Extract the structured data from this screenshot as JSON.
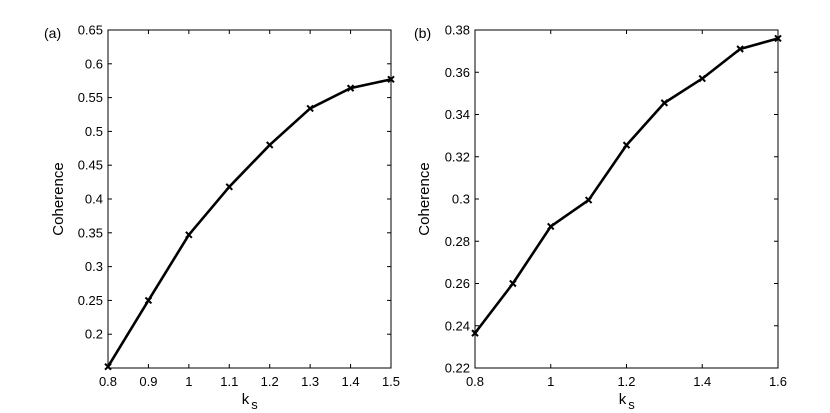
{
  "chart_data": [
    {
      "type": "line",
      "panel_label": "(a)",
      "xlabel": "k",
      "xlabel_sub": "s",
      "ylabel": "Coherence",
      "xlim": [
        0.8,
        1.5
      ],
      "ylim": [
        0.15,
        0.65
      ],
      "xticks": [
        "0.8",
        "0.9",
        "1",
        "1.1",
        "1.2",
        "1.3",
        "1.4",
        "1.5"
      ],
      "yticks": [
        "0.2",
        "0.25",
        "0.3",
        "0.35",
        "0.4",
        "0.45",
        "0.5",
        "0.55",
        "0.6",
        "0.65"
      ],
      "grid": false,
      "marker": "x",
      "color": "#000000",
      "x": [
        0.8,
        0.9,
        1.0,
        1.1,
        1.2,
        1.3,
        1.4,
        1.5
      ],
      "y": [
        0.152,
        0.25,
        0.347,
        0.418,
        0.48,
        0.534,
        0.564,
        0.577
      ]
    },
    {
      "type": "line",
      "panel_label": "(b)",
      "xlabel": "k",
      "xlabel_sub": "s",
      "ylabel": "Coherence",
      "xlim": [
        0.8,
        1.6
      ],
      "ylim": [
        0.22,
        0.38
      ],
      "xticks": [
        "0.8",
        "1",
        "1.2",
        "1.4",
        "1.6"
      ],
      "yticks": [
        "0.22",
        "0.24",
        "0.26",
        "0.28",
        "0.3",
        "0.32",
        "0.34",
        "0.36",
        "0.38"
      ],
      "grid": false,
      "marker": "x",
      "color": "#000000",
      "x": [
        0.8,
        0.9,
        1.0,
        1.1,
        1.2,
        1.3,
        1.4,
        1.5,
        1.6
      ],
      "y": [
        0.2365,
        0.26,
        0.287,
        0.2995,
        0.3255,
        0.3455,
        0.357,
        0.371,
        0.376
      ]
    }
  ]
}
